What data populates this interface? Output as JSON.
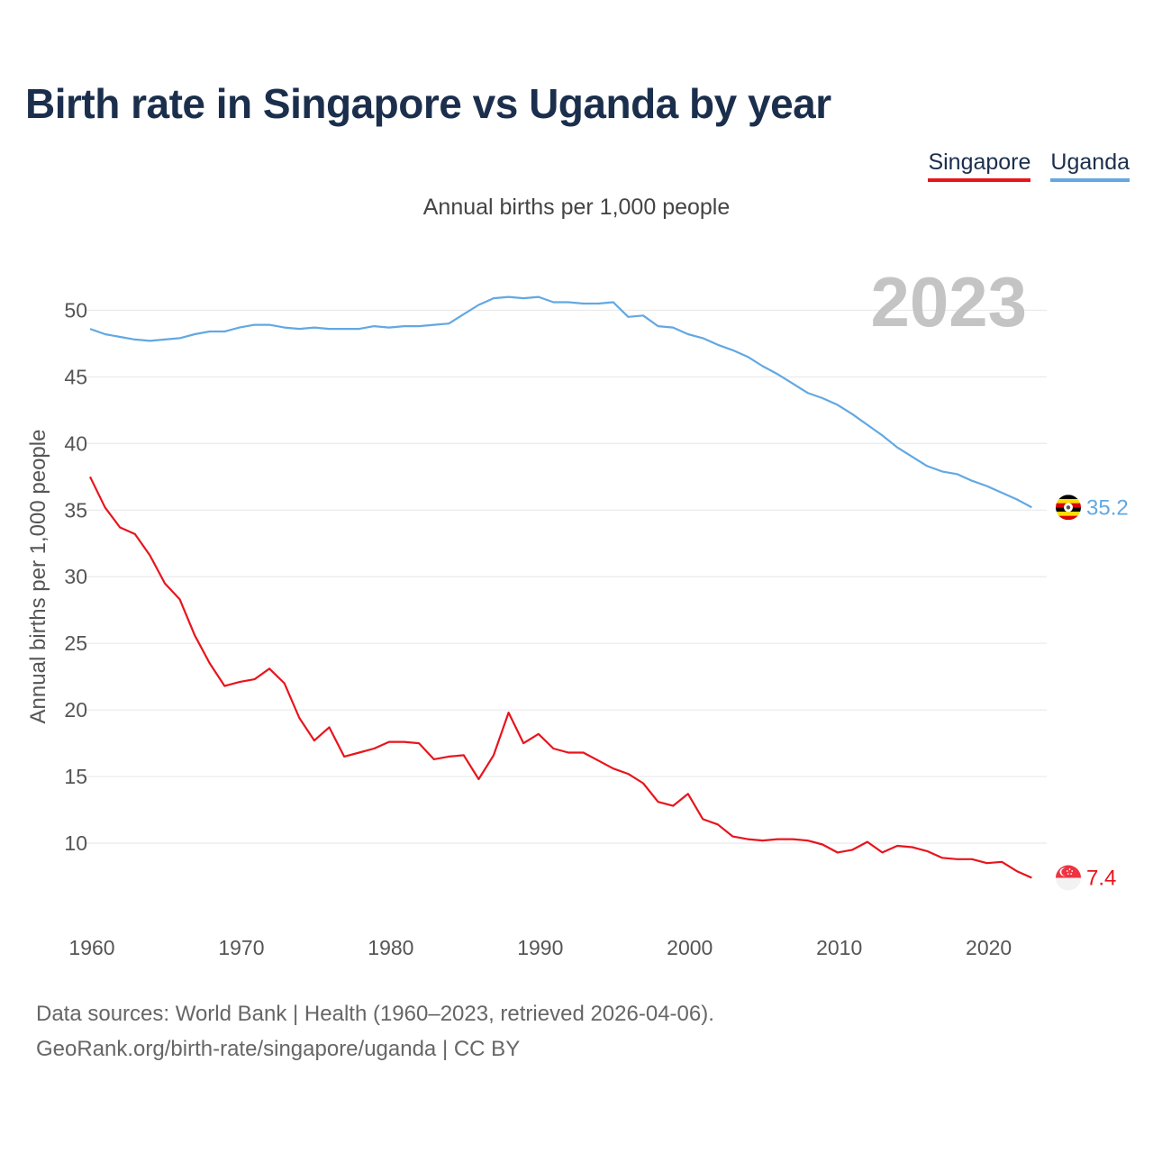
{
  "page": {
    "title": "Birth rate in Singapore vs Uganda by year",
    "subtitle": "Annual births per 1,000 people",
    "sources_line1": "Data sources: World Bank | Health (1960–2023, retrieved 2026-04-06).",
    "sources_line2": "GeoRank.org/birth-rate/singapore/uganda | CC BY"
  },
  "legend": [
    {
      "label": "Singapore",
      "color": "#e8141c"
    },
    {
      "label": "Uganda",
      "color": "#62a8e3"
    }
  ],
  "chart_data": {
    "type": "line",
    "title": "Birth rate in Singapore vs Uganda by year",
    "subtitle": "Annual births per 1,000 people",
    "xlabel": "",
    "ylabel": "Annual births per 1,000 people",
    "year_label": "2023",
    "xlim": [
      1960,
      2024
    ],
    "ylim": [
      5,
      53
    ],
    "xticks": [
      1960,
      1970,
      1980,
      1990,
      2000,
      2010,
      2020
    ],
    "yticks": [
      10,
      15,
      20,
      25,
      30,
      35,
      40,
      45,
      50
    ],
    "grid": true,
    "x": [
      1960,
      1961,
      1962,
      1963,
      1964,
      1965,
      1966,
      1967,
      1968,
      1969,
      1970,
      1971,
      1972,
      1973,
      1974,
      1975,
      1976,
      1977,
      1978,
      1979,
      1980,
      1981,
      1982,
      1983,
      1984,
      1985,
      1986,
      1987,
      1988,
      1989,
      1990,
      1991,
      1992,
      1993,
      1994,
      1995,
      1996,
      1997,
      1998,
      1999,
      2000,
      2001,
      2002,
      2003,
      2004,
      2005,
      2006,
      2007,
      2008,
      2009,
      2010,
      2011,
      2012,
      2013,
      2014,
      2015,
      2016,
      2017,
      2018,
      2019,
      2020,
      2021,
      2022,
      2023
    ],
    "series": [
      {
        "name": "Singapore",
        "color": "#e8141c",
        "end_label": "7.4",
        "flag": "singapore-flag-icon",
        "values": [
          37.5,
          35.2,
          33.7,
          33.2,
          31.6,
          29.5,
          28.3,
          25.6,
          23.5,
          21.8,
          22.1,
          22.3,
          23.1,
          22.0,
          19.4,
          17.7,
          18.7,
          16.5,
          16.8,
          17.1,
          17.6,
          17.6,
          17.5,
          16.3,
          16.5,
          16.6,
          14.8,
          16.6,
          19.8,
          17.5,
          18.2,
          17.1,
          16.8,
          16.8,
          16.2,
          15.6,
          15.2,
          14.5,
          13.1,
          12.8,
          13.7,
          11.8,
          11.4,
          10.5,
          10.3,
          10.2,
          10.3,
          10.3,
          10.2,
          9.9,
          9.3,
          9.5,
          10.1,
          9.3,
          9.8,
          9.7,
          9.4,
          8.9,
          8.8,
          8.8,
          8.5,
          8.6,
          7.9,
          7.4
        ]
      },
      {
        "name": "Uganda",
        "color": "#62a8e3",
        "end_label": "35.2",
        "flag": "uganda-flag-icon",
        "values": [
          48.6,
          48.2,
          48.0,
          47.8,
          47.7,
          47.8,
          47.9,
          48.2,
          48.4,
          48.4,
          48.7,
          48.9,
          48.9,
          48.7,
          48.6,
          48.7,
          48.6,
          48.6,
          48.6,
          48.8,
          48.7,
          48.8,
          48.8,
          48.9,
          49.0,
          49.7,
          50.4,
          50.9,
          51.0,
          50.9,
          51.0,
          50.6,
          50.6,
          50.5,
          50.5,
          50.6,
          49.5,
          49.6,
          48.8,
          48.7,
          48.2,
          47.9,
          47.4,
          47.0,
          46.5,
          45.8,
          45.2,
          44.5,
          43.8,
          43.4,
          42.9,
          42.2,
          41.4,
          40.6,
          39.7,
          39.0,
          38.3,
          37.9,
          37.7,
          37.2,
          36.8,
          36.3,
          35.8,
          35.2
        ]
      }
    ]
  }
}
